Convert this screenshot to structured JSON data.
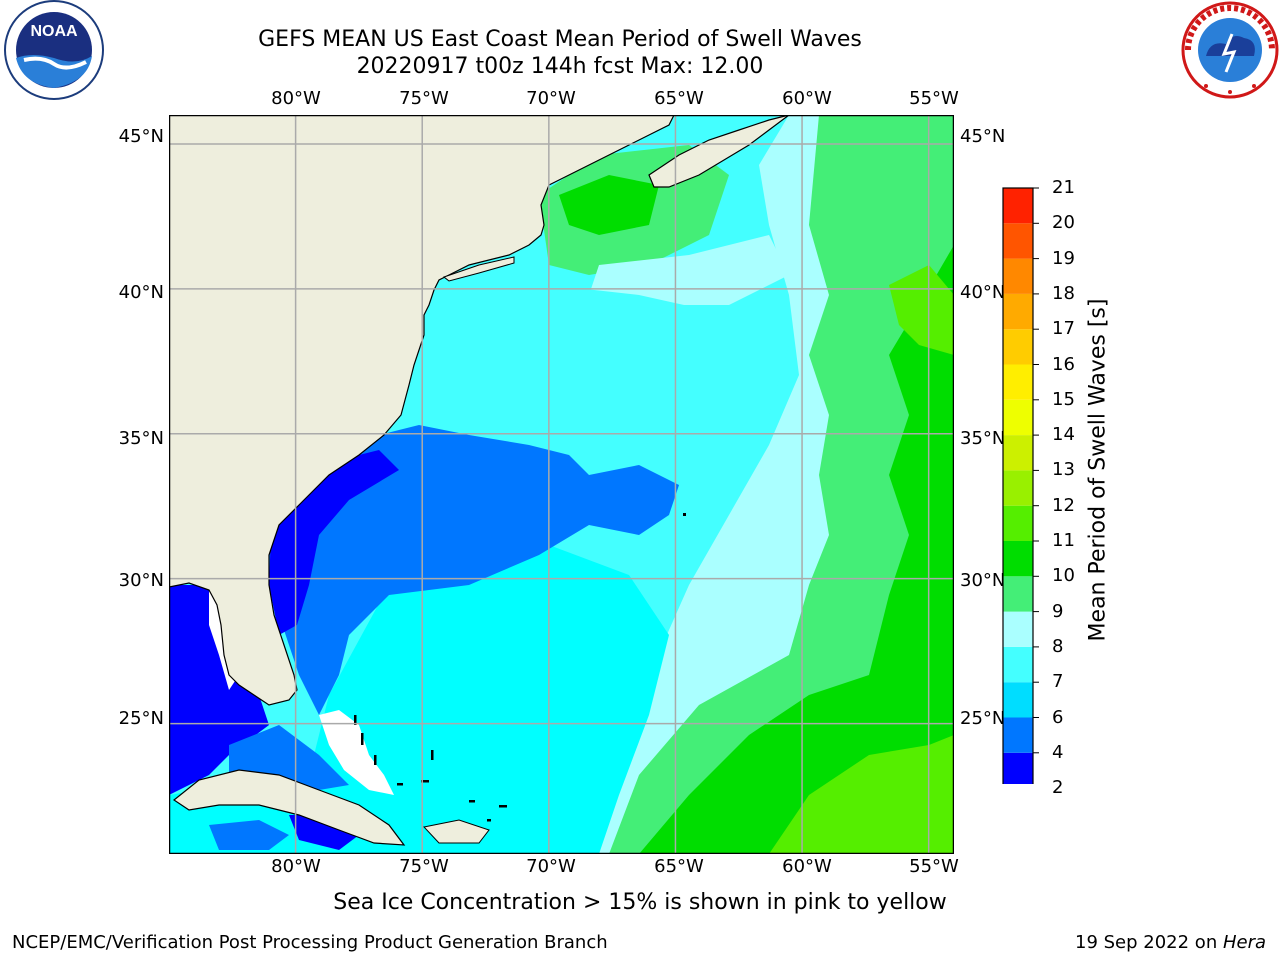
{
  "header": {
    "title_line1": "GEFS MEAN US East Coast Mean Period of Swell Waves",
    "title_line2": "20220917 t00z 144h fcst   Max: 12.00"
  },
  "logos": {
    "left": {
      "name": "noaa-logo",
      "text": "NOAA",
      "ring_text": "NATIONAL OCEANIC AND ATMOSPHERIC ADMINISTRATION · U.S. DEPARTMENT OF COMMERCE"
    },
    "right": {
      "name": "nws-logo",
      "ring_text": "NATIONAL WEATHER SERVICE"
    }
  },
  "map": {
    "projection": "equirectangular",
    "lon_range": [
      -85,
      -54
    ],
    "lat_range": [
      20.5,
      46
    ],
    "longitude_labels": [
      "80°W",
      "75°W",
      "70°W",
      "65°W",
      "60°W",
      "55°W"
    ],
    "latitude_labels": [
      "45°N",
      "40°N",
      "35°N",
      "30°N",
      "25°N"
    ],
    "land_color": "#eeeedd",
    "grid": true,
    "grid_color": "#aaaaaa"
  },
  "colorbar": {
    "title": "Mean Period of Swell Waves [s]",
    "tick_labels": [
      "2",
      "4",
      "6",
      "7",
      "8",
      "9",
      "10",
      "11",
      "12",
      "13",
      "14",
      "15",
      "16",
      "17",
      "18",
      "19",
      "20",
      "21"
    ],
    "colors": [
      "#0000ff",
      "#0077ff",
      "#00ddff",
      "#44ffff",
      "#aaffff",
      "#44ee77",
      "#00dd00",
      "#55ee00",
      "#99f000",
      "#ccf000",
      "#eeff00",
      "#ffee00",
      "#ffcc00",
      "#ffaa00",
      "#ff8800",
      "#ff5500",
      "#ff2200"
    ],
    "extend": "min"
  },
  "field_colors": {
    "lt2": "#0000ff",
    "c2_4": "#0077ff",
    "c4_6": "#00ffff",
    "c6_7": "#44ffff",
    "c7_8": "#aaffff",
    "c8_9": "#44ee77",
    "c9_10": "#00dd00",
    "c10_11": "#55ee00"
  },
  "caption": "Sea Ice Concentration > 15% is shown in pink to yellow",
  "footer": {
    "left": "NCEP/EMC/Verification Post Processing Product Generation Branch",
    "right_date": "19 Sep 2022 on ",
    "right_machine": "Hera"
  }
}
